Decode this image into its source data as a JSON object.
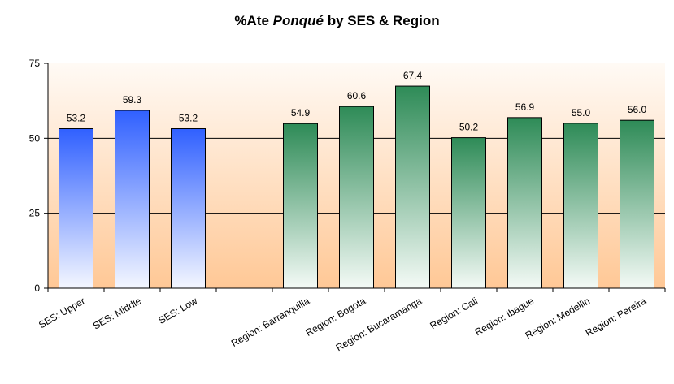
{
  "chart_data": {
    "type": "bar",
    "title_parts": [
      "%Ate ",
      "Ponqué",
      " by SES & Region"
    ],
    "categories": [
      "SES: Upper",
      "SES: Middle",
      "SES: Low",
      "",
      "Region: Barranquilla",
      "Region: Bogota",
      "Region: Bucaramanga",
      "Region: Cali",
      "Region: Ibague",
      "Region: Medellin",
      "Region: Pereira"
    ],
    "values": [
      53.2,
      59.3,
      53.2,
      null,
      54.9,
      60.6,
      67.4,
      50.2,
      56.9,
      55.0,
      56.0
    ],
    "data_labels": [
      "53.2",
      "59.3",
      "53.2",
      "",
      "54.9",
      "60.6",
      "67.4",
      "50.2",
      "56.9",
      "55.0",
      "56.0"
    ],
    "bar_groups": [
      "ses",
      "ses",
      "ses",
      "none",
      "region",
      "region",
      "region",
      "region",
      "region",
      "region",
      "region"
    ],
    "ylim": [
      0,
      75
    ],
    "yticks": [
      0,
      25,
      50,
      75
    ],
    "gridlines": [
      25,
      50
    ],
    "colors": {
      "ses_bar_top": "#3060ff",
      "ses_bar_bottom": "#f4f7ff",
      "region_bar_top": "#2e8b57",
      "region_bar_bottom": "#f4faf6",
      "plot_bg_top": "#fffaf5",
      "plot_bg_bottom": "#ffc896",
      "bar_outline": "#000000"
    }
  }
}
